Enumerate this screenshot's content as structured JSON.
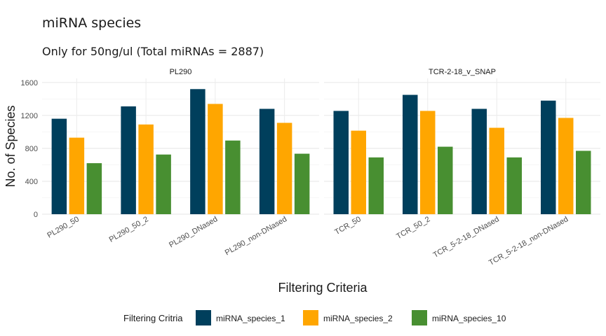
{
  "chart_data": {
    "type": "bar",
    "title": "miRNA species",
    "subtitle": "Only for 50ng/ul (Total miRNAs = 2887)",
    "xlabel": "Filtering Criteria",
    "ylabel": "No. of Species",
    "ylim": [
      0,
      1650
    ],
    "yticks": [
      "0",
      "400",
      "800",
      "1200",
      "1600"
    ],
    "ytick_values": [
      0,
      400,
      800,
      1200,
      1600
    ],
    "grid": true,
    "legend": {
      "title": "Filtering Critria",
      "position": "bottom"
    },
    "series_info": [
      {
        "name": "miRNA_species_1",
        "color": "#003f5c"
      },
      {
        "name": "miRNA_species_2",
        "color": "#ffa600"
      },
      {
        "name": "miRNA_species_10",
        "color": "#488f31"
      }
    ],
    "facets": [
      {
        "label": "PL290",
        "categories": [
          "PL290_50",
          "PL290_50_2",
          "PL290_DNased",
          "PL290_non-DNased"
        ],
        "series": [
          {
            "name": "miRNA_species_1",
            "values": [
              1160,
              1310,
              1520,
              1280
            ]
          },
          {
            "name": "miRNA_species_2",
            "values": [
              930,
              1090,
              1340,
              1110
            ]
          },
          {
            "name": "miRNA_species_10",
            "values": [
              620,
              725,
              895,
              735
            ]
          }
        ]
      },
      {
        "label": "TCR-2-18_v_SNAP",
        "categories": [
          "TCR_50",
          "TCR_50_2",
          "TCR_5-2-18_DNased",
          "TCR_5-2-18_non-DNased"
        ],
        "series": [
          {
            "name": "miRNA_species_1",
            "values": [
              1255,
              1450,
              1280,
              1380
            ]
          },
          {
            "name": "miRNA_species_2",
            "values": [
              1015,
              1255,
              1050,
              1170
            ]
          },
          {
            "name": "miRNA_species_10",
            "values": [
              690,
              820,
              690,
              770
            ]
          }
        ]
      }
    ]
  }
}
